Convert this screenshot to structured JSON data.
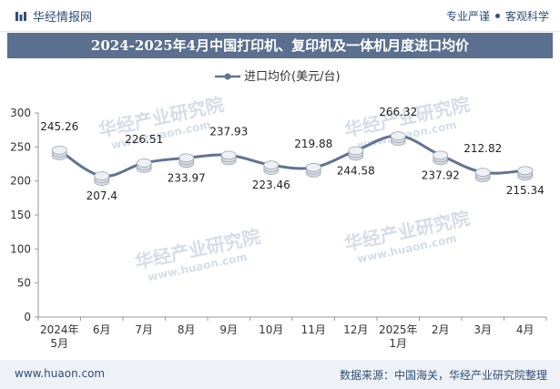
{
  "header": {
    "brand_name": "华经情报网",
    "right_items": [
      "专业严谨",
      "客观科学"
    ]
  },
  "title": "2024-2025年4月中国打印机、复印机及一体机月度进口均价",
  "footer": {
    "website": "www.huaon.com",
    "source": "数据来源：中国海关，华经产业研究院整理"
  },
  "watermark": {
    "text": "华经产业研究院",
    "url": "www.huaon.com"
  },
  "colors": {
    "line": "#5f7394",
    "marker": "#d9dde3",
    "title_bg": "#5b6f8e",
    "text": "#2f4e7a"
  },
  "chart_data": {
    "type": "line",
    "title": "2024-2025年4月中国打印机、复印机及一体机月度进口均价",
    "categories": [
      "2024年5月",
      "6月",
      "7月",
      "8月",
      "9月",
      "10月",
      "11月",
      "12月",
      "2025年1月",
      "2月",
      "3月",
      "4月"
    ],
    "series": [
      {
        "name": "进口均价(美元/台)",
        "values": [
          245.26,
          207.4,
          226.51,
          233.97,
          237.93,
          223.46,
          219.88,
          244.58,
          266.32,
          237.92,
          212.82,
          215.34
        ]
      }
    ],
    "value_labels": [
      "245.26",
      "207.4",
      "226.51",
      "233.97",
      "237.93",
      "223.46",
      "219.88",
      "244.58",
      "266.32",
      "237.92",
      "212.82",
      "215.34"
    ],
    "ylim": [
      0,
      300
    ],
    "yticks": [
      0,
      50,
      100,
      150,
      200,
      250,
      300
    ],
    "xlabel": "",
    "ylabel": "",
    "legend_position": "top-center",
    "grid": false
  }
}
